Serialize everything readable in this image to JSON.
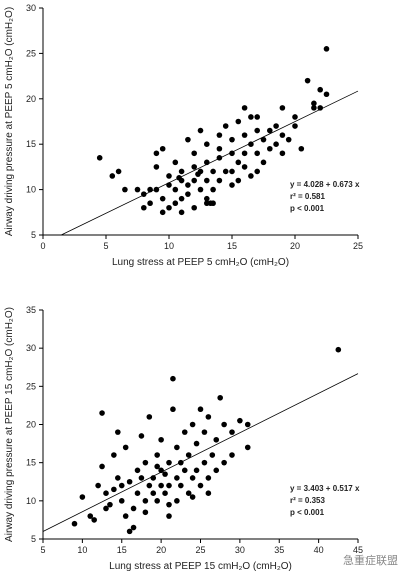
{
  "chart_data": [
    {
      "type": "scatter",
      "color": "#000000",
      "xlabel": "Lung stress at PEEP 5 cmH₂O (cmH₂O)",
      "ylabel": "Airway driving pressure at PEEP 5 cmH₂O (cmH₂O)",
      "annotations": [
        "y = 4.028 + 0.673 x",
        "r² = 0.581",
        "p < 0.001"
      ],
      "trendline": {
        "intercept": 4.028,
        "slope": 0.673
      },
      "xlim": [
        0,
        25
      ],
      "xticks": [
        0,
        5,
        10,
        15,
        20,
        25
      ],
      "ylim": [
        5,
        30
      ],
      "yticks": [
        5,
        10,
        15,
        20,
        25,
        30
      ],
      "x": [
        4.5,
        5.5,
        6,
        7.5,
        8,
        8.5,
        8.5,
        9,
        9,
        9,
        9.5,
        9.5,
        9.5,
        10,
        10,
        10,
        10.5,
        10.5,
        10.5,
        11,
        11,
        11,
        11,
        11.5,
        11.5,
        11.5,
        12,
        12,
        12,
        12,
        12.5,
        12.5,
        12.5,
        13,
        13,
        13,
        13,
        13.5,
        13.5,
        13.5,
        14,
        14,
        14,
        14,
        14.5,
        14.5,
        15,
        15,
        15,
        15,
        15.5,
        15.5,
        15.5,
        16,
        16,
        16,
        16,
        16.5,
        16.5,
        16.5,
        17,
        17,
        17,
        17,
        17.5,
        17.5,
        18,
        18,
        18.5,
        18.5,
        19,
        19,
        19,
        19.5,
        20,
        20,
        20.5,
        21,
        21.5,
        21.5,
        22,
        22,
        22.5,
        22.5,
        6.5,
        8,
        13,
        13.3,
        10.8,
        12.3
      ],
      "values": [
        13.5,
        11.5,
        12,
        10,
        9.5,
        8.5,
        10,
        10,
        12.5,
        14,
        9,
        7.5,
        14.5,
        8,
        10.5,
        11.5,
        8.5,
        10,
        13,
        7.5,
        9,
        11,
        12,
        9.5,
        10.5,
        15.5,
        8,
        11,
        12.5,
        14,
        10,
        12,
        16.5,
        9,
        11,
        13,
        15,
        8.5,
        10,
        12,
        11,
        13.5,
        14.5,
        16,
        12,
        17,
        10.5,
        12,
        14,
        15.5,
        11,
        13,
        17.5,
        12.5,
        14,
        16,
        19,
        11.5,
        15,
        18,
        12,
        14,
        16.5,
        18,
        13,
        15.5,
        14.5,
        16.5,
        15,
        17,
        14,
        16,
        19,
        15.5,
        17,
        18,
        14.5,
        22,
        19,
        19.5,
        21,
        19,
        25.5,
        20.5,
        10,
        8,
        8.5,
        8.5,
        11.3,
        11.7
      ]
    },
    {
      "type": "scatter",
      "color": "#000000",
      "xlabel": "Lung stress at PEEP 15 cmH₂O (cmH₂O)",
      "ylabel": "Airway driving pressure at PEEP 15 cmH₂O (cmH₂O)",
      "annotations": [
        "y = 3.403 + 0.517 x",
        "r² = 0.353",
        "p < 0.001"
      ],
      "trendline": {
        "intercept": 3.403,
        "slope": 0.517
      },
      "xlim": [
        5,
        45
      ],
      "xticks": [
        5,
        10,
        15,
        20,
        25,
        30,
        35,
        40,
        45
      ],
      "ylim": [
        5,
        35
      ],
      "yticks": [
        5,
        10,
        15,
        20,
        25,
        30,
        35
      ],
      "x": [
        9,
        10,
        11,
        11.5,
        12,
        12.5,
        12.5,
        13,
        13,
        13.5,
        14,
        14,
        14.5,
        14.5,
        15,
        15,
        15.5,
        15.5,
        16,
        16,
        16.5,
        16.5,
        17,
        17,
        17.5,
        17.5,
        18,
        18,
        18.5,
        18.5,
        19,
        19,
        19.5,
        19.5,
        20,
        20,
        20,
        20.5,
        20.5,
        21,
        21,
        21,
        21.5,
        21.5,
        22,
        22,
        22,
        22.5,
        22.5,
        23,
        23,
        23.5,
        23.5,
        24,
        24,
        24.5,
        24.5,
        25,
        25,
        25.5,
        25.5,
        26,
        26,
        26.5,
        27,
        27,
        27.5,
        28,
        28,
        29,
        29,
        30,
        31,
        31,
        42.5,
        18,
        21,
        24,
        19.5,
        26
      ],
      "values": [
        7,
        10.5,
        8,
        7.5,
        12,
        21.5,
        14.5,
        11,
        9,
        9.5,
        11.5,
        16,
        19,
        13,
        12,
        10,
        17,
        8,
        6,
        12.5,
        6.5,
        9,
        11,
        14,
        13,
        18.5,
        10,
        15,
        12,
        21,
        11,
        13,
        10,
        16,
        12,
        14,
        18,
        11,
        13.5,
        8,
        15,
        12,
        22,
        26,
        10,
        13,
        17,
        12,
        15,
        14,
        19,
        11,
        16,
        13,
        20,
        14,
        17.5,
        12,
        22,
        15,
        19,
        13,
        21,
        16,
        18,
        14,
        23.5,
        15,
        20,
        16,
        19,
        20.5,
        17,
        20,
        29.8,
        8.5,
        9.5,
        10.5,
        14.5,
        11
      ]
    }
  ],
  "watermark": "急重症联盟"
}
